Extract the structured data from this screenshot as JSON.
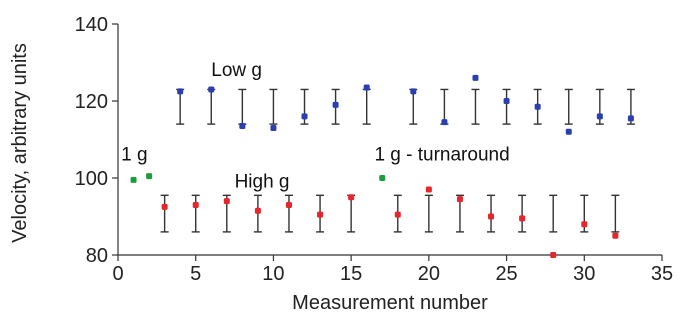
{
  "chart_data": {
    "type": "scatter",
    "xlabel": "Measurement number",
    "ylabel": "Velocity, arbitrary units",
    "xlim": [
      0,
      35
    ],
    "ylim": [
      80,
      140
    ],
    "xticks": [
      0,
      5,
      10,
      15,
      20,
      25,
      30,
      35
    ],
    "yticks": [
      80,
      100,
      120,
      140
    ],
    "grid": false,
    "legend": "none",
    "series": [
      {
        "color": "#2a3fb0",
        "x": [
          4,
          6,
          8,
          10,
          12,
          14,
          16,
          19,
          21,
          23,
          25,
          27,
          29,
          31,
          33
        ],
        "y": [
          122.5,
          123,
          113.5,
          113,
          116,
          119,
          123.5,
          122.5,
          114.5,
          126,
          120,
          118.5,
          112,
          116,
          115.5
        ]
      },
      {
        "color": "#e8252a",
        "x": [
          3,
          5,
          7,
          9,
          11,
          13,
          15,
          18,
          20,
          22,
          24,
          26,
          28,
          30,
          32
        ],
        "y": [
          92.5,
          93,
          94,
          91.5,
          93,
          90.5,
          95,
          90.5,
          97,
          94.5,
          90,
          89.5,
          80,
          88,
          85
        ]
      },
      {
        "color": "#1d9e3e",
        "x": [
          1,
          2,
          17
        ],
        "y": [
          99.5,
          100.5,
          100
        ]
      }
    ],
    "error_bars": {
      "upper": [
        {
          "x": [
            4,
            6,
            8,
            10,
            12,
            14,
            16,
            19,
            21,
            23,
            25,
            27,
            29,
            31,
            33
          ],
          "low": 114,
          "high": 123
        },
        {
          "x": [
            3,
            5,
            7,
            9,
            11,
            13,
            15,
            18,
            20,
            22,
            24,
            26,
            28,
            30,
            32
          ],
          "low": 86,
          "high": 95.5
        }
      ],
      "color": "#333333"
    },
    "annotations": [
      {
        "text": "Low g",
        "x": 6,
        "y": 126.5
      },
      {
        "text": "1 g",
        "x": 0.2,
        "y": 104.5
      },
      {
        "text": "High g",
        "x": 7.5,
        "y": 97.5
      },
      {
        "text": "1 g - turnaround",
        "x": 16.5,
        "y": 104.5
      }
    ]
  }
}
